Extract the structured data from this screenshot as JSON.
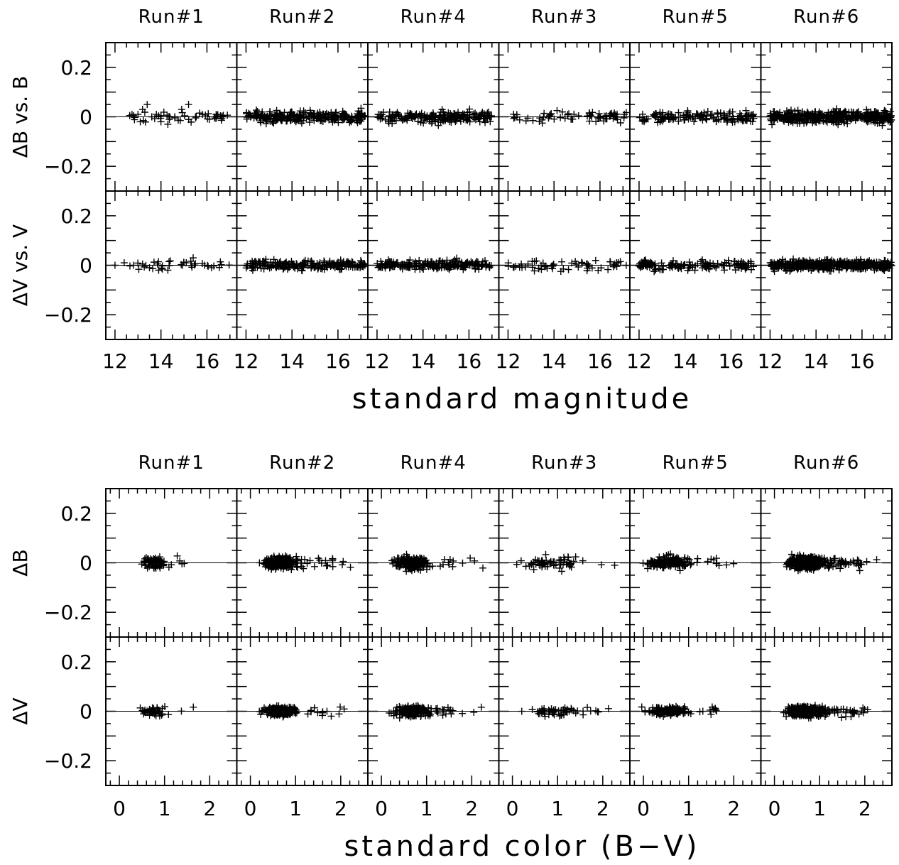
{
  "figure": {
    "top_xlabel": "standard magnitude",
    "bottom_xlabel": "standard color (B−V)"
  },
  "chart_data": [
    {
      "type": "scatter",
      "panel_group": "magnitude",
      "xlabel": "standard magnitude",
      "xlim": [
        11.6,
        17.3
      ],
      "xticks": [
        12,
        14,
        16
      ],
      "ylim": [
        -0.3,
        0.3
      ],
      "yticks": [
        "0.2",
        "0",
        "−0.2"
      ],
      "ytick_values": [
        0.2,
        0,
        -0.2
      ],
      "rows": [
        {
          "ylabel": "ΔB vs. B"
        },
        {
          "ylabel": "ΔV vs. V"
        }
      ],
      "columns": [
        {
          "run": "Run#1",
          "x": [
            12.6,
            17.0
          ],
          "ncount": [
            40,
            32
          ],
          "points": [
            [
              12.8,
              0.005
            ],
            [
              13.0,
              0.01
            ],
            [
              13.1,
              -0.02
            ],
            [
              13.2,
              0.03
            ],
            [
              13.4,
              0.05
            ],
            [
              13.6,
              0.0
            ],
            [
              13.8,
              0.01
            ],
            [
              14.0,
              -0.02
            ],
            [
              14.3,
              -0.03
            ],
            [
              14.6,
              0.0
            ],
            [
              14.9,
              0.03
            ],
            [
              15.2,
              0.05
            ],
            [
              15.5,
              0.0
            ],
            [
              15.8,
              0.01
            ],
            [
              16.1,
              -0.01
            ],
            [
              16.4,
              0.01
            ],
            [
              16.7,
              0.0
            ]
          ],
          "points_v": [
            [
              12.0,
              0.0
            ],
            [
              12.4,
              0.01
            ],
            [
              12.8,
              0.0
            ],
            [
              13.2,
              0.005
            ],
            [
              13.5,
              -0.01
            ],
            [
              13.9,
              -0.02
            ],
            [
              14.3,
              -0.02
            ],
            [
              15.1,
              0.01
            ],
            [
              15.4,
              0.03
            ],
            [
              15.9,
              0.0
            ],
            [
              16.2,
              -0.01
            ]
          ]
        },
        {
          "run": "Run#2",
          "x": [
            12.0,
            17.2
          ],
          "ncount": [
            260,
            200
          ]
        },
        {
          "run": "Run#4",
          "x": [
            12.0,
            17.0
          ],
          "ncount": [
            190,
            210
          ]
        },
        {
          "run": "Run#3",
          "x": [
            12.0,
            17.2
          ],
          "ncount": [
            70,
            60
          ]
        },
        {
          "run": "Run#5",
          "x": [
            12.0,
            17.0
          ],
          "ncount": [
            150,
            140
          ]
        },
        {
          "run": "Run#6",
          "x": [
            12.0,
            17.3
          ],
          "ncount": [
            420,
            420
          ]
        }
      ]
    },
    {
      "type": "scatter",
      "panel_group": "color",
      "xlabel": "standard color (B−V)",
      "xlim": [
        -0.3,
        2.6
      ],
      "xticks": [
        0,
        1,
        2
      ],
      "ylim": [
        -0.3,
        0.3
      ],
      "yticks": [
        "0.2",
        "0",
        "−0.2"
      ],
      "ytick_values": [
        0.2,
        0,
        -0.2
      ],
      "rows": [
        {
          "ylabel": "ΔB"
        },
        {
          "ylabel": "ΔV"
        }
      ],
      "columns": [
        {
          "run": "Run#1",
          "x": [
            0.4,
            1.4
          ],
          "ncount": [
            80,
            50
          ]
        },
        {
          "run": "Run#2",
          "x": [
            0.2,
            1.5
          ],
          "ncount": [
            260,
            220
          ]
        },
        {
          "run": "Run#4",
          "x": [
            0.2,
            1.5
          ],
          "ncount": [
            200,
            220
          ]
        },
        {
          "run": "Run#3",
          "x": [
            0.0,
            2.5
          ],
          "ncount": [
            70,
            60
          ]
        },
        {
          "run": "Run#5",
          "x": [
            0.0,
            1.6
          ],
          "ncount": [
            160,
            140
          ]
        },
        {
          "run": "Run#6",
          "x": [
            0.2,
            1.6
          ],
          "ncount": [
            430,
            430
          ]
        }
      ]
    }
  ]
}
